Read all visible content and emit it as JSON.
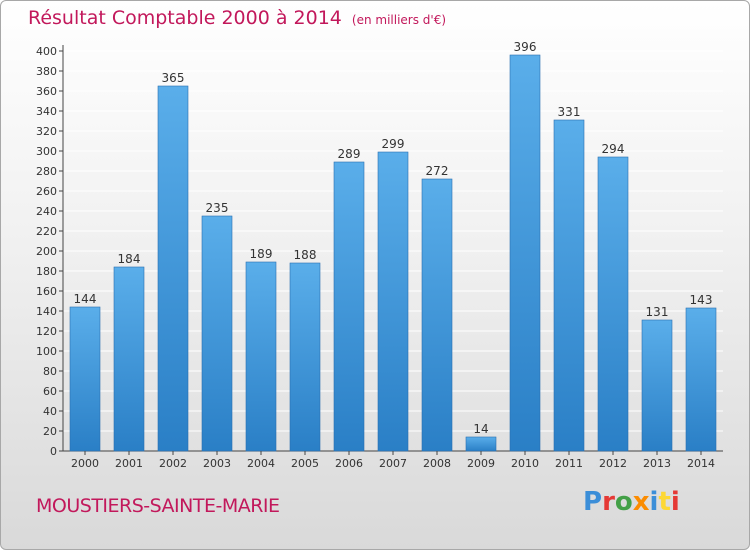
{
  "header": {
    "title": "Résultat Comptable 2000 à 2014",
    "unit": "(en milliers d'€)"
  },
  "footer": {
    "commune": "MOUSTIERS-SAINTE-MARIE",
    "logo_text": "Proxiti"
  },
  "colors": {
    "bar_light": "#5aaeea",
    "bar_dark": "#2a7fc6",
    "title": "#c2185b",
    "axis": "#444444"
  },
  "chart_data": {
    "type": "bar",
    "categories": [
      "2000",
      "2001",
      "2002",
      "2003",
      "2004",
      "2005",
      "2006",
      "2007",
      "2008",
      "2009",
      "2010",
      "2011",
      "2012",
      "2013",
      "2014"
    ],
    "values": [
      144,
      184,
      365,
      235,
      189,
      188,
      289,
      299,
      272,
      14,
      396,
      331,
      294,
      131,
      143
    ],
    "ylim": [
      0,
      400
    ],
    "ytick_step": 20,
    "grid": true
  }
}
